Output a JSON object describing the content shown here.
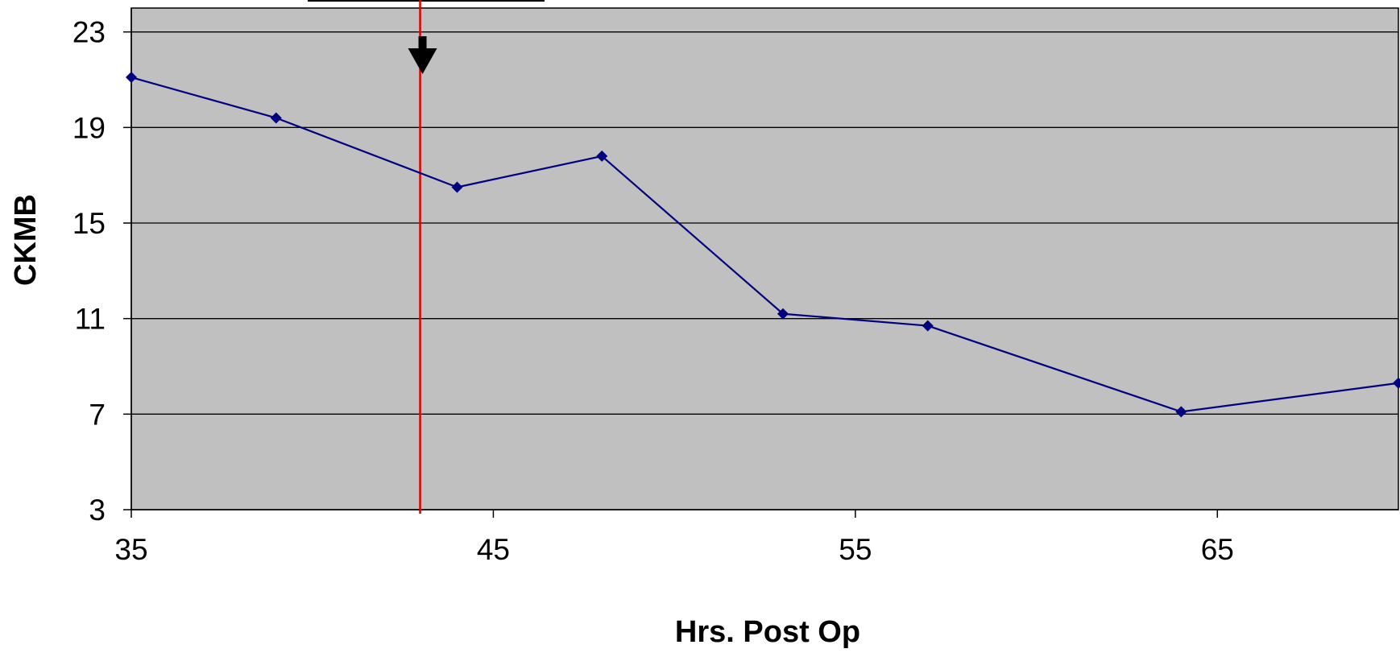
{
  "chart_data": {
    "type": "line",
    "title": "",
    "xlabel": "Hrs. Post Op",
    "ylabel": "CKMB",
    "xlim": [
      35,
      70
    ],
    "ylim": [
      3,
      24
    ],
    "x_ticks": [
      35,
      45,
      55,
      65
    ],
    "y_ticks": [
      3,
      7,
      11,
      15,
      19,
      23
    ],
    "grid": "horizontal",
    "plot_background": "#c0c0c0",
    "series": [
      {
        "color": "#000080",
        "marker": "diamond",
        "points": [
          {
            "x": 35,
            "y": 21.1
          },
          {
            "x": 39,
            "y": 19.4
          },
          {
            "x": 44,
            "y": 16.5
          },
          {
            "x": 48,
            "y": 17.8
          },
          {
            "x": 53,
            "y": 11.2
          },
          {
            "x": 57,
            "y": 10.7
          },
          {
            "x": 64,
            "y": 7.1
          },
          {
            "x": 70,
            "y": 8.3
          }
        ]
      }
    ],
    "annotations": {
      "reference_line": {
        "x": 43,
        "color": "#e00000"
      },
      "arrow": {
        "x": 43,
        "icon": "down-arrow-icon",
        "color": "#000000"
      }
    }
  }
}
